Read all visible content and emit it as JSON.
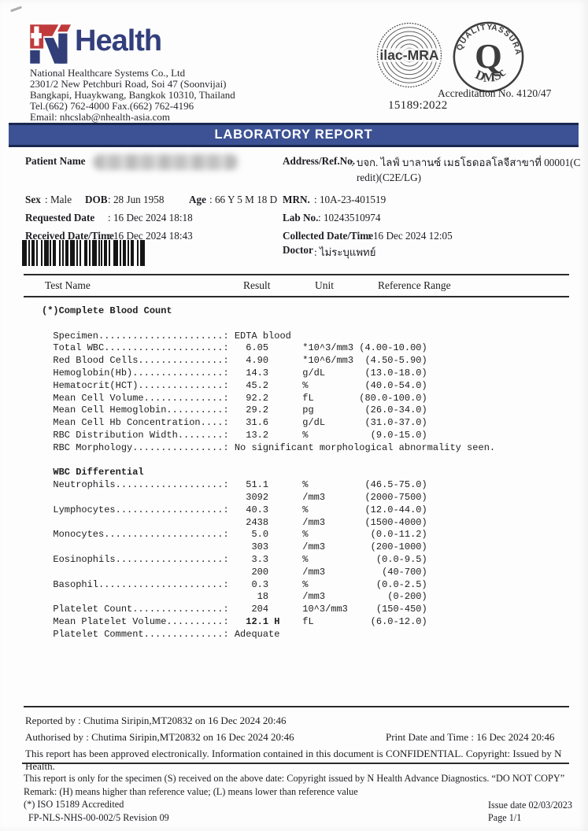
{
  "header": {
    "logo": {
      "brand": "Health",
      "red": "#c03a3c",
      "blue": "#313e78"
    },
    "company": {
      "name": "National Healthcare Systems Co., Ltd",
      "address1": "2301/2 New Petchburi Road, Soi 47 (Soonvijai)",
      "address2": "Bangkapi, Huaykwang, Bangkok 10310, Thailand",
      "phone": "Tel.(662) 762-4000 Fax.(662) 762-4196",
      "email": "Email: nhcslab@nhealth-asia.com"
    },
    "seals": {
      "ilac": "ilac-MRA",
      "quality": "QUALITY",
      "assurance": "ASSURANCE",
      "q": "Q",
      "dms": "DMSc",
      "accreditation": "Accreditation No. 4120/47",
      "iso": "15189:2022"
    }
  },
  "banner": {
    "title": "LABORATORY REPORT",
    "color": "#3d5294"
  },
  "patient": {
    "name_label": "Patient Name",
    "address_label": "Address/Ref.No.",
    "address_line1": ": บจก. ไลฟ์ บาลานซ์ เมธโธดอลโลจีสาขาที่ 00001(C",
    "address_line2": "redit)(C2E/LG)"
  },
  "demographics": {
    "sex_label": "Sex",
    "sex": ": Male",
    "dob_label": "DOB",
    "dob": ": 28 Jun 1958",
    "age_label": "Age",
    "age": ": 66 Y 5 M 18 D",
    "mrn_label": "MRN.",
    "mrn": ": 10A-23-401519",
    "requested_label": "Requested Date",
    "requested": ": 16 Dec 2024 18:18",
    "lab_no_label": "Lab No.",
    "lab_no": ": 10243510974",
    "received_label": "Received Date/Time",
    "received": ": 16 Dec 2024 18:43",
    "collected_label": "Collected Date/Time",
    "collected": ": 16 Dec 2024  12:05",
    "doctor_label": "Doctor",
    "doctor": ": ไม่ระบุแพทย์"
  },
  "table": {
    "headers": [
      "Test Name",
      "Result",
      "Unit",
      "Reference Range"
    ],
    "sections": [
      {
        "title": "(*)Complete Blood Count",
        "rows": [
          {
            "label": "Specimen",
            "text": "EDTA blood"
          },
          {
            "label": "Total WBC",
            "result": "6.05",
            "unit": "*10^3/mm3",
            "range": "(4.00-10.00)"
          },
          {
            "label": "Red Blood Cells",
            "result": "4.90",
            "unit": "*10^6/mm3",
            "range": "(4.50-5.90)"
          },
          {
            "label": "Hemoglobin(Hb)",
            "result": "14.3",
            "unit": "g/dL",
            "range": "(13.0-18.0)"
          },
          {
            "label": "Hematocrit(HCT)",
            "result": "45.2",
            "unit": "%",
            "range": "(40.0-54.0)"
          },
          {
            "label": "Mean Cell Volume",
            "result": "92.2",
            "unit": "fL",
            "range": "(80.0-100.0)"
          },
          {
            "label": "Mean Cell Hemoglobin",
            "result": "29.2",
            "unit": "pg",
            "range": "(26.0-34.0)"
          },
          {
            "label": "Mean Cell Hb Concentration",
            "result": "31.6",
            "unit": "g/dL",
            "range": "(31.0-37.0)"
          },
          {
            "label": "RBC Distribution Width",
            "result": "13.2",
            "unit": "%",
            "range": "(9.0-15.0)"
          },
          {
            "label": "RBC Morphology",
            "text": "No significant morphological abnormality seen."
          }
        ]
      },
      {
        "title": "WBC Differential",
        "rows": [
          {
            "label": "Neutrophils",
            "result": "51.1",
            "unit": "%",
            "range": "(46.5-75.0)"
          },
          {
            "label": "",
            "result": "3092",
            "unit": "/mm3",
            "range": "(2000-7500)"
          },
          {
            "label": "Lymphocytes",
            "result": "40.3",
            "unit": "%",
            "range": "(12.0-44.0)"
          },
          {
            "label": "",
            "result": "2438",
            "unit": "/mm3",
            "range": "(1500-4000)"
          },
          {
            "label": "Monocytes",
            "result": "5.0",
            "unit": "%",
            "range": "(0.0-11.2)"
          },
          {
            "label": "",
            "result": "303",
            "unit": "/mm3",
            "range": "(200-1000)"
          },
          {
            "label": "Eosinophils",
            "result": "3.3",
            "unit": "%",
            "range": "(0.0-9.5)"
          },
          {
            "label": "",
            "result": "200",
            "unit": "/mm3",
            "range": "(40-700)"
          },
          {
            "label": "Basophil",
            "result": "0.3",
            "unit": "%",
            "range": "(0.0-2.5)"
          },
          {
            "label": "",
            "result": "18",
            "unit": "/mm3",
            "range": "(0-200)"
          },
          {
            "label": "Platelet Count",
            "result": "204",
            "unit": "10^3/mm3",
            "range": "(150-450)"
          },
          {
            "label": "Mean Platelet Volume",
            "result": "12.1",
            "flag": "H",
            "bold": true,
            "unit": "fL",
            "range": "(6.0-12.0)"
          },
          {
            "label": "Platelet Comment",
            "text": "Adequate"
          }
        ]
      }
    ]
  },
  "footer": {
    "reported_by": "Reported by : Chutima Siripin,MT20832 on 16 Dec 2024 20:46",
    "authorised_by": "Authorised by : Chutima Siripin,MT20832 on 16 Dec 2024 20:46",
    "print_date": "Print Date and Time : 16 Dec 2024 20:46",
    "approved": "This report has been approved electronically. Information contained in this document is CONFIDENTIAL. Copyright: Issued by N Health.",
    "specimen_note": "This report is only for the specimen (S) received on the above date: Copyright issued by N Health Advance Diagnostics. “DO NOT COPY”",
    "remark": "Remark: (H) means higher than reference value; (L) means lower than reference value",
    "iso_note": "(*) ISO 15189 Accredited",
    "issue_date": "Issue date 02/03/2023",
    "form_code": "FP-NLS-NHS-00-002/5 Revision 09",
    "page_no": "Page 1/1"
  },
  "icons": {
    "barcode": "specimen-barcode",
    "ilac_seal": "ilac-mra-accreditation-seal",
    "quality_seal": "dmsc-quality-assurance-seal",
    "logo": "nhealth-cross-n-logo"
  }
}
